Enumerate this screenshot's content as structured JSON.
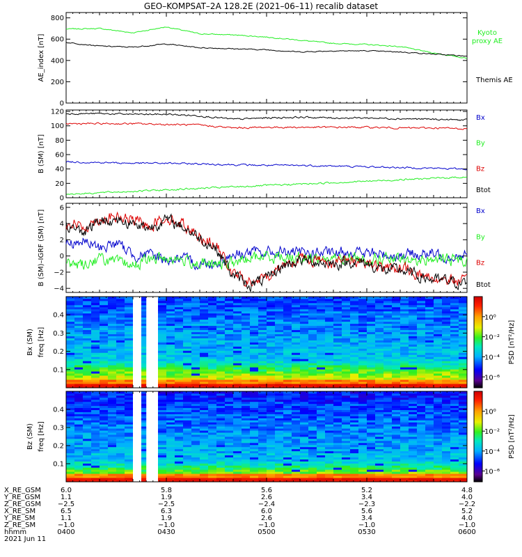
{
  "title": "GEO–KOMPSAT–2A 128.2E (2021–06–11) recalib dataset",
  "colors": {
    "black": "#000000",
    "red": "#dd0000",
    "green": "#22ee22",
    "blue": "#0000cc"
  },
  "chart_data": [
    {
      "type": "line",
      "ylabel": "AE_index [nT]",
      "ylim": [
        0,
        850
      ],
      "yticks": [
        "0",
        "200",
        "400",
        "600",
        "800"
      ],
      "x": [
        "04:00",
        "04:10",
        "04:20",
        "04:30",
        "04:40",
        "04:50",
        "05:00",
        "05:10",
        "05:20",
        "05:30",
        "05:40",
        "05:50",
        "06:00"
      ],
      "series": [
        {
          "name": "Kyoto proxy AE",
          "color": "green",
          "values": [
            695,
            700,
            660,
            715,
            650,
            640,
            620,
            590,
            560,
            550,
            530,
            470,
            420
          ]
        },
        {
          "name": "Themis AE",
          "color": "black",
          "values": [
            570,
            535,
            525,
            555,
            520,
            510,
            500,
            480,
            490,
            490,
            480,
            460,
            440
          ]
        }
      ],
      "legend_lines": [
        {
          "text": "Kyoto",
          "color": "green"
        },
        {
          "text": "proxy AE",
          "color": "green"
        },
        {
          "text": "Themis AE",
          "color": "black"
        }
      ]
    },
    {
      "type": "line",
      "ylabel": "B (SM) [nT]",
      "ylim": [
        0,
        122
      ],
      "yticks": [
        "0",
        "20",
        "40",
        "60",
        "80",
        "100",
        "120"
      ],
      "x": [
        "04:00",
        "04:10",
        "04:20",
        "04:30",
        "04:40",
        "04:50",
        "05:00",
        "05:10",
        "05:20",
        "05:30",
        "05:40",
        "05:50",
        "06:00"
      ],
      "series": [
        {
          "name": "Btot",
          "color": "black",
          "values": [
            117,
            117,
            116,
            116,
            114,
            109,
            111,
            112,
            111,
            111,
            110,
            109,
            108
          ]
        },
        {
          "name": "Bz",
          "color": "red",
          "values": [
            103,
            103,
            103,
            102,
            101,
            97,
            98,
            98,
            98,
            98,
            97,
            97,
            96
          ]
        },
        {
          "name": "Bx",
          "color": "blue",
          "values": [
            50,
            49,
            48,
            48,
            47,
            46,
            45,
            45,
            44,
            43,
            42,
            41,
            40
          ]
        },
        {
          "name": "By",
          "color": "green",
          "values": [
            5,
            7,
            9,
            11,
            13,
            15,
            17,
            19,
            21,
            23,
            25,
            27,
            29
          ]
        }
      ],
      "legend_lines": [
        {
          "text": "Bx",
          "color": "blue"
        },
        {
          "text": "By",
          "color": "green"
        },
        {
          "text": "Bz",
          "color": "red"
        },
        {
          "text": "Btot",
          "color": "black"
        }
      ]
    },
    {
      "type": "line",
      "ylabel": "B (SM)–IGRF (SM) [nT]",
      "ylim": [
        -4.5,
        6.5
      ],
      "yticks": [
        "−4",
        "−2",
        "0",
        "2",
        "4",
        "6"
      ],
      "x": [
        "04:00",
        "04:05",
        "04:10",
        "04:15",
        "04:20",
        "04:25",
        "04:30",
        "04:35",
        "04:40",
        "04:45",
        "04:50",
        "04:55",
        "05:00",
        "05:05",
        "05:10",
        "05:15",
        "05:20",
        "05:25",
        "05:30",
        "05:35",
        "05:40",
        "05:45",
        "05:50",
        "05:55",
        "06:00"
      ],
      "series": [
        {
          "name": "Bx",
          "color": "blue",
          "values": [
            1.5,
            1.8,
            1.0,
            1.6,
            0.2,
            0.1,
            -0.4,
            -0.5,
            -1.0,
            -0.8,
            0.2,
            0.4,
            0.4,
            0.5,
            0.3,
            0.4,
            0.2,
            0.6,
            0.3,
            0.2,
            0.1,
            0.3,
            0.2,
            0.0,
            0.1
          ]
        },
        {
          "name": "By",
          "color": "green",
          "values": [
            -1.0,
            -1.0,
            -0.3,
            -0.8,
            -1.1,
            -0.5,
            -0.2,
            -0.5,
            -0.9,
            -1.2,
            -0.9,
            -0.3,
            0.0,
            -0.1,
            -0.1,
            -0.2,
            -0.4,
            -0.2,
            -0.4,
            -0.3,
            -0.6,
            -0.6,
            -0.4,
            -0.4,
            -0.5
          ]
        },
        {
          "name": "Bz",
          "color": "red",
          "values": [
            4.2,
            3.5,
            4.6,
            4.8,
            4.4,
            3.8,
            4.8,
            3.9,
            2.5,
            1.2,
            -2.2,
            -3.4,
            -2.7,
            -1.0,
            -0.3,
            -0.5,
            -0.8,
            -0.5,
            -0.7,
            -1.6,
            -1.5,
            -2.2,
            -2.8,
            -2.9,
            -3.3
          ]
        },
        {
          "name": "Btot",
          "color": "black",
          "values": [
            3.8,
            3.0,
            4.3,
            4.5,
            4.0,
            3.5,
            4.5,
            3.6,
            2.2,
            0.9,
            -2.4,
            -3.6,
            -2.9,
            -1.2,
            -0.5,
            -0.7,
            -1.0,
            -0.7,
            -0.9,
            -1.8,
            -1.7,
            -2.4,
            -3.0,
            -3.1,
            -3.5
          ]
        }
      ],
      "legend_lines": [
        {
          "text": "Bx",
          "color": "blue"
        },
        {
          "text": "By",
          "color": "green"
        },
        {
          "text": "Bz",
          "color": "red"
        },
        {
          "text": "Btot",
          "color": "black"
        }
      ]
    },
    {
      "type": "heatmap",
      "ylabel": "Bx (SM)",
      "ylabel2": "freq [Hz]",
      "ylim": [
        0,
        0.5
      ],
      "yticks": [
        "0.1",
        "0.2",
        "0.3",
        "0.4"
      ],
      "colorbar_label": "PSD [nT²/Hz]",
      "colorbar_ticks": [
        "10⁰",
        "10⁻²",
        "10⁻⁴",
        "10⁻⁶"
      ],
      "gaps_minutes": [
        [
          20,
          22
        ],
        [
          24,
          26
        ]
      ]
    },
    {
      "type": "heatmap",
      "ylabel": "Bz (SM)",
      "ylabel2": "freq [Hz]",
      "ylim": [
        0,
        0.5
      ],
      "yticks": [
        "0.1",
        "0.2",
        "0.3",
        "0.4"
      ],
      "colorbar_label": "PSD [nT²/Hz]",
      "colorbar_ticks": [
        "10⁰",
        "10⁻²",
        "10⁻⁴",
        "10⁻⁶"
      ],
      "gaps_minutes": [
        [
          20,
          22
        ],
        [
          24,
          26
        ]
      ]
    }
  ],
  "xaxis_table": {
    "row_labels": [
      "X_RE_GSM",
      "Y_RE_GSM",
      "Z_RE_GSM",
      "X_RE_SM",
      "Y_RE_SM",
      "Z_RE_SM",
      "hhmm"
    ],
    "columns": [
      [
        "6.0",
        "1.1",
        "−2.5",
        "6.5",
        "1.1",
        "−1.0",
        "0400"
      ],
      [
        "5.8",
        "1.9",
        "−2.5",
        "6.3",
        "1.9",
        "−1.0",
        "0430"
      ],
      [
        "5.6",
        "2.6",
        "−2.4",
        "6.0",
        "2.6",
        "−1.0",
        "0500"
      ],
      [
        "5.2",
        "3.4",
        "−2.3",
        "5.6",
        "3.4",
        "−1.0",
        "0530"
      ],
      [
        "4.8",
        "4.0",
        "−2.2",
        "5.2",
        "4.0",
        "−1.0",
        "0600"
      ]
    ],
    "date": "2021 Jun 11"
  }
}
